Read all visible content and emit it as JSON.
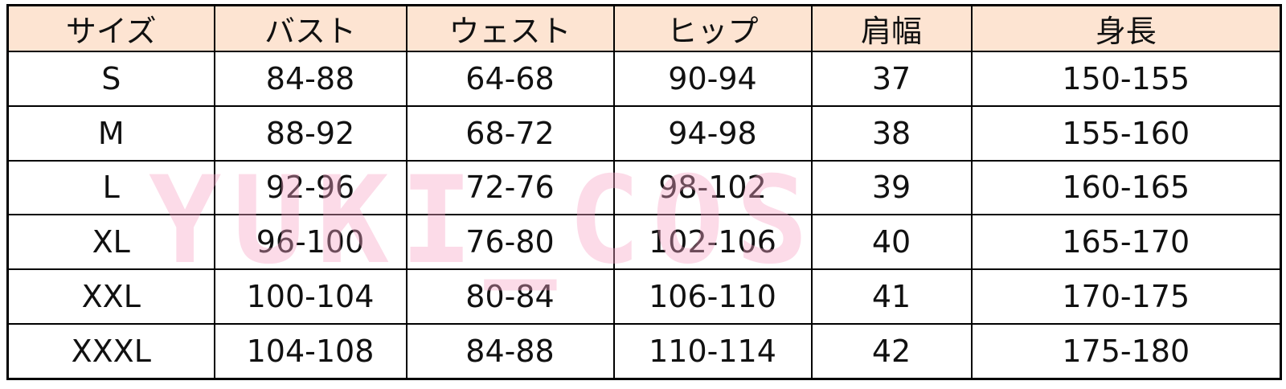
{
  "table": {
    "columns": [
      "サイズ",
      "バスト",
      "ウェスト",
      "ヒップ",
      "肩幅",
      "身長"
    ],
    "rows": [
      [
        "S",
        "84-88",
        "64-68",
        "90-94",
        "37",
        "150-155"
      ],
      [
        "M",
        "88-92",
        "68-72",
        "94-98",
        "38",
        "155-160"
      ],
      [
        "L",
        "92-96",
        "72-76",
        "98-102",
        "39",
        "160-165"
      ],
      [
        "XL",
        "96-100",
        "76-80",
        "102-106",
        "40",
        "165-170"
      ],
      [
        "XXL",
        "100-104",
        "80-84",
        "106-110",
        "41",
        "170-175"
      ],
      [
        "XXXL",
        "104-108",
        "84-88",
        "110-114",
        "42",
        "175-180"
      ]
    ]
  },
  "watermark": "YUKI_COS"
}
